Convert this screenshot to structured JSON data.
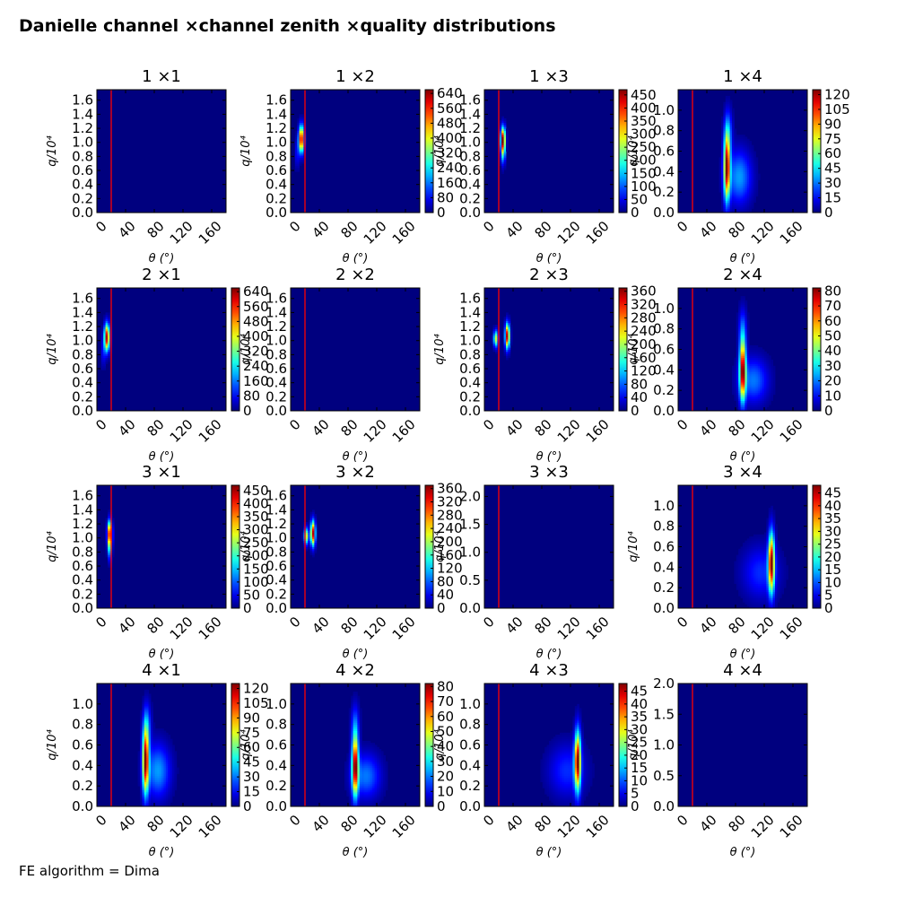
{
  "figure": {
    "title": "Danielle channel ×channel zenith ×quality distributions",
    "footnote": "FE algorithm = Dima"
  },
  "chart_data": [
    {
      "type": "heatmap",
      "title": "1 ×1",
      "xlabel": "θ (°)",
      "ylabel": "q/10⁴",
      "xlim": [
        0,
        180
      ],
      "xticks": [
        0,
        40,
        80,
        120,
        160
      ],
      "ylim": [
        0,
        1.75
      ],
      "yticks": [
        "0.0",
        "0.2",
        "0.4",
        "0.6",
        "0.8",
        "1.0",
        "1.2",
        "1.4",
        "1.6"
      ],
      "colorbar": null,
      "cut_line_x": 20,
      "blobs": []
    },
    {
      "type": "heatmap",
      "title": "1 ×2",
      "xlabel": "θ (°)",
      "ylabel": "q/10⁴",
      "xlim": [
        0,
        180
      ],
      "xticks": [
        0,
        40,
        80,
        120,
        160
      ],
      "ylim": [
        0,
        1.75
      ],
      "yticks": [
        "0.0",
        "0.2",
        "0.4",
        "0.6",
        "0.8",
        "1.0",
        "1.2",
        "1.4",
        "1.6"
      ],
      "colorbar": {
        "ticks": [
          "0",
          "80",
          "160",
          "240",
          "320",
          "400",
          "480",
          "560",
          "640"
        ],
        "max": 660
      },
      "cut_line_x": 20,
      "blobs": [
        {
          "x": 15,
          "y": 1.05,
          "sx": 2.5,
          "sy": 0.13,
          "peak": 640
        },
        {
          "x": 9,
          "y": 0.85,
          "sx": 2,
          "sy": 0.15,
          "peak": 90
        }
      ]
    },
    {
      "type": "heatmap",
      "title": "1 ×3",
      "xlabel": "θ (°)",
      "ylabel": "q/10⁴",
      "xlim": [
        0,
        180
      ],
      "xticks": [
        0,
        40,
        80,
        120,
        160
      ],
      "ylim": [
        0,
        1.75
      ],
      "yticks": [
        "0.0",
        "0.2",
        "0.4",
        "0.6",
        "0.8",
        "1.0",
        "1.2",
        "1.4",
        "1.6"
      ],
      "colorbar": {
        "ticks": [
          "0",
          "50",
          "100",
          "150",
          "200",
          "250",
          "300",
          "350",
          "400",
          "450"
        ],
        "max": 470
      },
      "cut_line_x": 20,
      "blobs": [
        {
          "x": 26,
          "y": 1.05,
          "sx": 2.2,
          "sy": 0.12,
          "peak": 450
        },
        {
          "x": 26,
          "y": 0.85,
          "sx": 2,
          "sy": 0.12,
          "peak": 150
        }
      ]
    },
    {
      "type": "heatmap",
      "title": "1 ×4",
      "xlabel": "θ (°)",
      "ylabel": "q/10⁴",
      "xlim": [
        0,
        180
      ],
      "xticks": [
        0,
        40,
        80,
        120,
        160
      ],
      "ylim": [
        0,
        1.2
      ],
      "yticks": [
        "0.0",
        "0.2",
        "0.4",
        "0.6",
        "0.8",
        "1.0"
      ],
      "colorbar": {
        "ticks": [
          "0",
          "15",
          "30",
          "45",
          "60",
          "75",
          "90",
          "105",
          "120"
        ],
        "max": 125
      },
      "cut_line_x": 20,
      "blobs": [
        {
          "x": 68,
          "y": 0.45,
          "sx": 3,
          "sy": 0.22,
          "peak": 120
        },
        {
          "x": 85,
          "y": 0.35,
          "sx": 12,
          "sy": 0.18,
          "peak": 35
        },
        {
          "x": 70,
          "y": 0.8,
          "sx": 4,
          "sy": 0.15,
          "peak": 25
        }
      ]
    },
    {
      "type": "heatmap",
      "title": "2 ×1",
      "xlabel": "θ (°)",
      "ylabel": "q/10⁴",
      "xlim": [
        0,
        180
      ],
      "xticks": [
        0,
        40,
        80,
        120,
        160
      ],
      "ylim": [
        0,
        1.75
      ],
      "yticks": [
        "0.0",
        "0.2",
        "0.4",
        "0.6",
        "0.8",
        "1.0",
        "1.2",
        "1.4",
        "1.6"
      ],
      "colorbar": {
        "ticks": [
          "0",
          "80",
          "160",
          "240",
          "320",
          "400",
          "480",
          "560",
          "640"
        ],
        "max": 660
      },
      "cut_line_x": 20,
      "blobs": [
        {
          "x": 14,
          "y": 1.05,
          "sx": 2.5,
          "sy": 0.13,
          "peak": 640
        },
        {
          "x": 9,
          "y": 0.85,
          "sx": 2,
          "sy": 0.15,
          "peak": 90
        }
      ]
    },
    {
      "type": "heatmap",
      "title": "2 ×2",
      "xlabel": "θ (°)",
      "ylabel": "q/10⁴",
      "xlim": [
        0,
        180
      ],
      "xticks": [
        0,
        40,
        80,
        120,
        160
      ],
      "ylim": [
        0,
        1.75
      ],
      "yticks": [
        "0.0",
        "0.2",
        "0.4",
        "0.6",
        "0.8",
        "1.0",
        "1.2",
        "1.4",
        "1.6"
      ],
      "colorbar": null,
      "cut_line_x": 20,
      "blobs": []
    },
    {
      "type": "heatmap",
      "title": "2 ×3",
      "xlabel": "θ (°)",
      "ylabel": "q/10⁴",
      "xlim": [
        0,
        180
      ],
      "xticks": [
        0,
        40,
        80,
        120,
        160
      ],
      "ylim": [
        0,
        1.75
      ],
      "yticks": [
        "0.0",
        "0.2",
        "0.4",
        "0.6",
        "0.8",
        "1.0",
        "1.2",
        "1.4",
        "1.6"
      ],
      "colorbar": {
        "ticks": [
          "0",
          "40",
          "80",
          "120",
          "160",
          "200",
          "240",
          "280",
          "320",
          "360"
        ],
        "max": 370
      },
      "cut_line_x": 20,
      "blobs": [
        {
          "x": 32,
          "y": 1.07,
          "sx": 2.2,
          "sy": 0.12,
          "peak": 360
        },
        {
          "x": 16,
          "y": 1.03,
          "sx": 2.2,
          "sy": 0.08,
          "peak": 220
        }
      ]
    },
    {
      "type": "heatmap",
      "title": "2 ×4",
      "xlabel": "θ (°)",
      "ylabel": "q/10⁴",
      "xlim": [
        0,
        180
      ],
      "xticks": [
        0,
        40,
        80,
        120,
        160
      ],
      "ylim": [
        0,
        1.2
      ],
      "yticks": [
        "0.0",
        "0.2",
        "0.4",
        "0.6",
        "0.8",
        "1.0"
      ],
      "colorbar": {
        "ticks": [
          "0",
          "10",
          "20",
          "30",
          "40",
          "50",
          "60",
          "70",
          "80"
        ],
        "max": 82
      },
      "cut_line_x": 20,
      "blobs": [
        {
          "x": 90,
          "y": 0.4,
          "sx": 3,
          "sy": 0.2,
          "peak": 80
        },
        {
          "x": 105,
          "y": 0.3,
          "sx": 14,
          "sy": 0.15,
          "peak": 20
        },
        {
          "x": 90,
          "y": 0.8,
          "sx": 4,
          "sy": 0.15,
          "peak": 15
        }
      ]
    },
    {
      "type": "heatmap",
      "title": "3 ×1",
      "xlabel": "θ (°)",
      "ylabel": "q/10⁴",
      "xlim": [
        0,
        180
      ],
      "xticks": [
        0,
        40,
        80,
        120,
        160
      ],
      "ylim": [
        0,
        1.75
      ],
      "yticks": [
        "0.0",
        "0.2",
        "0.4",
        "0.6",
        "0.8",
        "1.0",
        "1.2",
        "1.4",
        "1.6"
      ],
      "colorbar": {
        "ticks": [
          "0",
          "50",
          "100",
          "150",
          "200",
          "250",
          "300",
          "350",
          "400",
          "450"
        ],
        "max": 470
      },
      "cut_line_x": 20,
      "blobs": [
        {
          "x": 18,
          "y": 1.07,
          "sx": 2.2,
          "sy": 0.12,
          "peak": 450
        },
        {
          "x": 18,
          "y": 0.85,
          "sx": 2,
          "sy": 0.12,
          "peak": 150
        }
      ]
    },
    {
      "type": "heatmap",
      "title": "3 ×2",
      "xlabel": "θ (°)",
      "ylabel": "q/10⁴",
      "xlim": [
        0,
        180
      ],
      "xticks": [
        0,
        40,
        80,
        120,
        160
      ],
      "ylim": [
        0,
        1.75
      ],
      "yticks": [
        "0.0",
        "0.2",
        "0.4",
        "0.6",
        "0.8",
        "1.0",
        "1.2",
        "1.4",
        "1.6"
      ],
      "colorbar": {
        "ticks": [
          "0",
          "40",
          "80",
          "120",
          "160",
          "200",
          "240",
          "280",
          "320",
          "360"
        ],
        "max": 370
      },
      "cut_line_x": 20,
      "blobs": [
        {
          "x": 31,
          "y": 1.07,
          "sx": 2.2,
          "sy": 0.12,
          "peak": 360
        },
        {
          "x": 22,
          "y": 1.03,
          "sx": 2.2,
          "sy": 0.08,
          "peak": 220
        }
      ]
    },
    {
      "type": "heatmap",
      "title": "3 ×3",
      "xlabel": "θ (°)",
      "ylabel": "q/10⁴",
      "xlim": [
        0,
        180
      ],
      "xticks": [
        0,
        40,
        80,
        120,
        160
      ],
      "ylim": [
        0,
        2.2
      ],
      "yticks": [
        "0.0",
        "0.5",
        "1.0",
        "1.5",
        "2.0"
      ],
      "colorbar": null,
      "cut_line_x": 20,
      "blobs": []
    },
    {
      "type": "heatmap",
      "title": "3 ×4",
      "xlabel": "θ (°)",
      "ylabel": "q/10⁴",
      "xlim": [
        0,
        180
      ],
      "xticks": [
        0,
        40,
        80,
        120,
        160
      ],
      "ylim": [
        0,
        1.2
      ],
      "yticks": [
        "0.0",
        "0.2",
        "0.4",
        "0.6",
        "0.8",
        "1.0"
      ],
      "colorbar": {
        "ticks": [
          "0",
          "5",
          "10",
          "15",
          "20",
          "25",
          "30",
          "35",
          "40",
          "45"
        ],
        "max": 48
      },
      "cut_line_x": 20,
      "blobs": [
        {
          "x": 130,
          "y": 0.45,
          "sx": 3,
          "sy": 0.2,
          "peak": 45
        },
        {
          "x": 115,
          "y": 0.35,
          "sx": 18,
          "sy": 0.18,
          "peak": 8
        }
      ]
    },
    {
      "type": "heatmap",
      "title": "4 ×1",
      "xlabel": "θ (°)",
      "ylabel": "q/10⁴",
      "xlim": [
        0,
        180
      ],
      "xticks": [
        0,
        40,
        80,
        120,
        160
      ],
      "ylim": [
        0,
        1.2
      ],
      "yticks": [
        "0.0",
        "0.2",
        "0.4",
        "0.6",
        "0.8",
        "1.0"
      ],
      "colorbar": {
        "ticks": [
          "0",
          "15",
          "30",
          "45",
          "60",
          "75",
          "90",
          "105",
          "120"
        ],
        "max": 125
      },
      "cut_line_x": 20,
      "blobs": [
        {
          "x": 68,
          "y": 0.45,
          "sx": 3,
          "sy": 0.22,
          "peak": 120
        },
        {
          "x": 85,
          "y": 0.35,
          "sx": 12,
          "sy": 0.18,
          "peak": 35
        },
        {
          "x": 70,
          "y": 0.8,
          "sx": 4,
          "sy": 0.15,
          "peak": 25
        }
      ]
    },
    {
      "type": "heatmap",
      "title": "4 ×2",
      "xlabel": "θ (°)",
      "ylabel": "q/10⁴",
      "xlim": [
        0,
        180
      ],
      "xticks": [
        0,
        40,
        80,
        120,
        160
      ],
      "ylim": [
        0,
        1.2
      ],
      "yticks": [
        "0.0",
        "0.2",
        "0.4",
        "0.6",
        "0.8",
        "1.0"
      ],
      "colorbar": {
        "ticks": [
          "0",
          "10",
          "20",
          "30",
          "40",
          "50",
          "60",
          "70",
          "80"
        ],
        "max": 82
      },
      "cut_line_x": 20,
      "blobs": [
        {
          "x": 90,
          "y": 0.4,
          "sx": 3,
          "sy": 0.2,
          "peak": 80
        },
        {
          "x": 105,
          "y": 0.3,
          "sx": 14,
          "sy": 0.15,
          "peak": 20
        },
        {
          "x": 90,
          "y": 0.8,
          "sx": 4,
          "sy": 0.15,
          "peak": 15
        }
      ]
    },
    {
      "type": "heatmap",
      "title": "4 ×3",
      "xlabel": "θ (°)",
      "ylabel": "q/10⁴",
      "xlim": [
        0,
        180
      ],
      "xticks": [
        0,
        40,
        80,
        120,
        160
      ],
      "ylim": [
        0,
        1.2
      ],
      "yticks": [
        "0.0",
        "0.2",
        "0.4",
        "0.6",
        "0.8",
        "1.0"
      ],
      "colorbar": {
        "ticks": [
          "0",
          "5",
          "10",
          "15",
          "20",
          "25",
          "30",
          "35",
          "40",
          "45"
        ],
        "max": 48
      },
      "cut_line_x": 20,
      "blobs": [
        {
          "x": 130,
          "y": 0.45,
          "sx": 3,
          "sy": 0.2,
          "peak": 45
        },
        {
          "x": 115,
          "y": 0.35,
          "sx": 18,
          "sy": 0.18,
          "peak": 8
        }
      ]
    },
    {
      "type": "heatmap",
      "title": "4 ×4",
      "xlabel": "θ (°)",
      "ylabel": "q/10⁴",
      "xlim": [
        0,
        180
      ],
      "xticks": [
        0,
        40,
        80,
        120,
        160
      ],
      "ylim": [
        0,
        2.0
      ],
      "yticks": [
        "0.0",
        "0.5",
        "1.0",
        "1.5",
        "2.0"
      ],
      "colorbar": null,
      "cut_line_x": 20,
      "blobs": []
    }
  ],
  "colors": {
    "background": "#00007f",
    "cut_line": "#ff0000",
    "colormap": "jet"
  }
}
